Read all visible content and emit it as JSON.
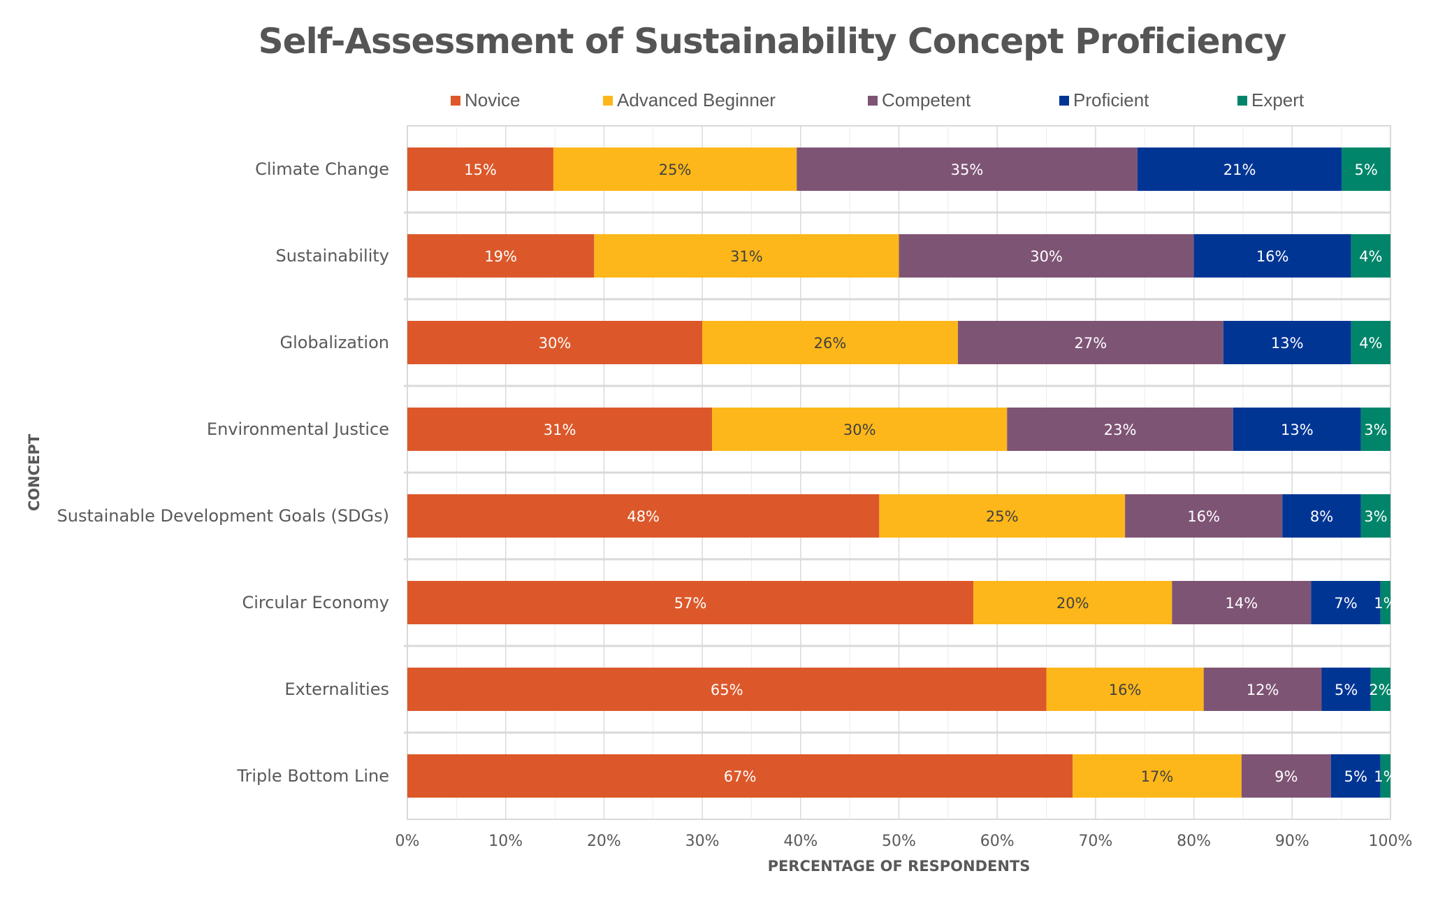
{
  "chart_data": {
    "type": "bar",
    "orientation": "horizontal",
    "stacked": "percent",
    "title": "Self-Assessment of Sustainability Concept Proficiency",
    "xlabel": "PERCENTAGE OF RESPONDENTS",
    "ylabel": "CONCEPT",
    "xlim": [
      0,
      100
    ],
    "x_ticks": [
      "0%",
      "10%",
      "20%",
      "30%",
      "40%",
      "50%",
      "60%",
      "70%",
      "80%",
      "90%",
      "100%"
    ],
    "grid": true,
    "legend_position": "top",
    "categories": [
      "Climate Change",
      "Sustainability",
      "Globalization",
      "Environmental Justice",
      "Sustainable Development Goals (SDGs)",
      "Circular Economy",
      "Externalities",
      "Triple Bottom Line"
    ],
    "series": [
      {
        "name": "Novice",
        "color": "#DC582A",
        "label_color": "#ffffff",
        "values": [
          15,
          19,
          30,
          31,
          48,
          57,
          65,
          67
        ]
      },
      {
        "name": "Advanced Beginner",
        "color": "#FDB71A",
        "label_color": "#404040",
        "values": [
          25,
          31,
          26,
          30,
          25,
          20,
          16,
          17
        ]
      },
      {
        "name": "Competent",
        "color": "#7E5475",
        "label_color": "#ffffff",
        "values": [
          35,
          30,
          27,
          23,
          16,
          14,
          12,
          9
        ]
      },
      {
        "name": "Proficient",
        "color": "#003594",
        "label_color": "#ffffff",
        "values": [
          21,
          16,
          13,
          13,
          8,
          7,
          5,
          5
        ]
      },
      {
        "name": "Expert",
        "color": "#00856A",
        "label_color": "#ffffff",
        "values": [
          5,
          4,
          4,
          3,
          3,
          1,
          2,
          1
        ]
      }
    ]
  }
}
